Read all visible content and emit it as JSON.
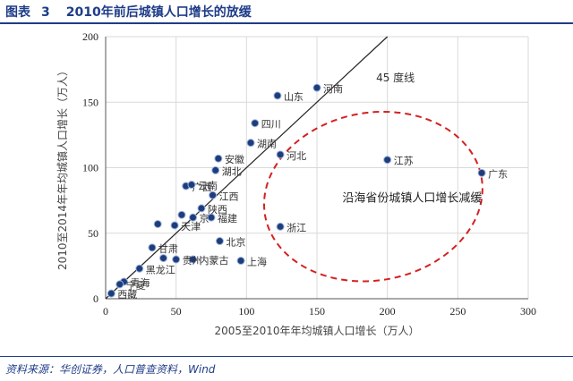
{
  "header": {
    "figure_label": "图表",
    "figure_number": "3",
    "title": "2010年前后城镇人口增长的放缓"
  },
  "footer": {
    "source": "资料来源：华创证券，人口普查资料，Wind"
  },
  "chart_data": {
    "type": "scatter",
    "title": "2010年前后城镇人口增长的放缓",
    "xlabel": "2005至2010年年均城镇人口增长（万人）",
    "ylabel": "2010至2014年年均城镇人口增长（万人）",
    "xlim": [
      0,
      300
    ],
    "ylim": [
      0,
      200
    ],
    "xticks": [
      0,
      50,
      100,
      150,
      200,
      250,
      300
    ],
    "yticks": [
      0,
      50,
      100,
      150,
      200
    ],
    "grid": true,
    "reference_line": {
      "label": "45 度线",
      "slope": 1
    },
    "annotation": "沿海省份城镇人口增长减缓",
    "marker_color": "#1f3d7a",
    "points": [
      {
        "name": "河南",
        "x": 150,
        "y": 161
      },
      {
        "name": "山东",
        "x": 122,
        "y": 155
      },
      {
        "name": "四川",
        "x": 106,
        "y": 134
      },
      {
        "name": "湖南",
        "x": 103,
        "y": 119
      },
      {
        "name": "河北",
        "x": 124,
        "y": 110
      },
      {
        "name": "江苏",
        "x": 200,
        "y": 106
      },
      {
        "name": "广东",
        "x": 267,
        "y": 96
      },
      {
        "name": "安徽",
        "x": 80,
        "y": 107
      },
      {
        "name": "湖北",
        "x": 78,
        "y": 98
      },
      {
        "name": "广西",
        "x": 57,
        "y": 86
      },
      {
        "name": "云南",
        "x": 61,
        "y": 87
      },
      {
        "name": "江西",
        "x": 76,
        "y": 79
      },
      {
        "name": "陕西",
        "x": 68,
        "y": 69
      },
      {
        "name": "福建",
        "x": 75,
        "y": 62
      },
      {
        "name": "浙江",
        "x": 124,
        "y": 55
      },
      {
        "name": "天津",
        "x": 49,
        "y": 56
      },
      {
        "name": "京",
        "x": 62,
        "y": 62
      },
      {
        "name": "",
        "x": 54,
        "y": 64
      },
      {
        "name": "",
        "x": 37,
        "y": 57
      },
      {
        "name": "北京",
        "x": 81,
        "y": 44
      },
      {
        "name": "甘肃",
        "x": 33,
        "y": 39
      },
      {
        "name": "上海",
        "x": 96,
        "y": 29
      },
      {
        "name": "黑龙江",
        "x": 24,
        "y": 23
      },
      {
        "name": "内蒙古",
        "x": 62,
        "y": 30
      },
      {
        "name": "贵州",
        "x": 50,
        "y": 30
      },
      {
        "name": "",
        "x": 41,
        "y": 31
      },
      {
        "name": "青海",
        "x": 13,
        "y": 13
      },
      {
        "name": "宁夏",
        "x": 10,
        "y": 11
      },
      {
        "name": "西藏",
        "x": 4,
        "y": 4
      }
    ]
  }
}
